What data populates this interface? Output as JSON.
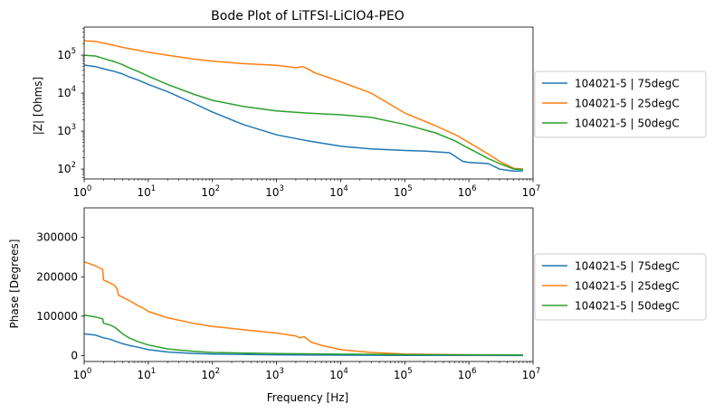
{
  "chart_data": [
    {
      "type": "line",
      "title": "Bode Plot of LiTFSI-LiClO4-PEO",
      "xlabel": "",
      "ylabel": "|Z| [Ohms]",
      "xscale": "log",
      "yscale": "log",
      "xlim": [
        1,
        10000000
      ],
      "ylim": [
        55,
        550000
      ],
      "xticks": [
        {
          "value": 1,
          "base": "10",
          "exp": "0"
        },
        {
          "value": 10,
          "base": "10",
          "exp": "1"
        },
        {
          "value": 100,
          "base": "10",
          "exp": "2"
        },
        {
          "value": 1000,
          "base": "10",
          "exp": "3"
        },
        {
          "value": 10000,
          "base": "10",
          "exp": "4"
        },
        {
          "value": 100000,
          "base": "10",
          "exp": "5"
        },
        {
          "value": 1000000,
          "base": "10",
          "exp": "6"
        },
        {
          "value": 10000000,
          "base": "10",
          "exp": "7"
        }
      ],
      "yticks": [
        {
          "value": 100,
          "base": "10",
          "exp": "2"
        },
        {
          "value": 1000,
          "base": "10",
          "exp": "3"
        },
        {
          "value": 10000,
          "base": "10",
          "exp": "4"
        },
        {
          "value": 100000,
          "base": "10",
          "exp": "5"
        }
      ],
      "legend_position": "right, outside",
      "series": [
        {
          "name": "104021-5 | 75degC",
          "color": "#1f77b4",
          "x": [
            1,
            1.5,
            2,
            3,
            4,
            5,
            7,
            10,
            20,
            50,
            100,
            300,
            1000,
            3000,
            10000,
            30000,
            100000,
            200000,
            500000,
            800000,
            1000000,
            2000000,
            3000000,
            5000000,
            7000000
          ],
          "y": [
            55000,
            50000,
            44000,
            37000,
            32000,
            27000,
            22000,
            17000,
            11000,
            5500,
            3200,
            1500,
            800,
            560,
            400,
            340,
            310,
            300,
            270,
            160,
            150,
            140,
            100,
            88,
            90
          ]
        },
        {
          "name": "104021-5 | 25degC",
          "color": "#ff7f0e",
          "x": [
            1,
            1.5,
            2,
            3,
            4,
            5,
            7,
            10,
            20,
            50,
            100,
            300,
            1000,
            2000,
            2500,
            3000,
            4000,
            5000,
            10000,
            30000,
            50000,
            100000,
            300000,
            700000,
            1000000,
            2000000,
            3000000,
            5000000,
            7000000
          ],
          "y": [
            240000,
            230000,
            210000,
            180000,
            160000,
            150000,
            135000,
            120000,
            100000,
            80000,
            70000,
            60000,
            54000,
            47000,
            50000,
            45000,
            34000,
            30000,
            20000,
            10000,
            6000,
            3000,
            1400,
            720,
            500,
            250,
            160,
            105,
            100
          ]
        },
        {
          "name": "104021-5 | 50degC",
          "color": "#2ca02c",
          "x": [
            1,
            1.5,
            2,
            3,
            4,
            5,
            7,
            10,
            20,
            50,
            100,
            300,
            1000,
            3000,
            10000,
            30000,
            100000,
            300000,
            600000,
            1000000,
            2000000,
            3000000,
            5000000,
            7000000
          ],
          "y": [
            100000,
            95000,
            82000,
            67000,
            56000,
            47000,
            37000,
            28000,
            17000,
            9500,
            6500,
            4500,
            3400,
            3000,
            2700,
            2300,
            1500,
            900,
            560,
            350,
            190,
            140,
            100,
            98
          ]
        }
      ]
    },
    {
      "type": "line",
      "title": "",
      "xlabel": "Frequency [Hz]",
      "ylabel": "Phase [Degrees]",
      "xscale": "log",
      "yscale": "linear",
      "xlim": [
        1,
        10000000
      ],
      "ylim": [
        -15000,
        375000
      ],
      "xticks": [
        {
          "value": 1,
          "base": "10",
          "exp": "0"
        },
        {
          "value": 10,
          "base": "10",
          "exp": "1"
        },
        {
          "value": 100,
          "base": "10",
          "exp": "2"
        },
        {
          "value": 1000,
          "base": "10",
          "exp": "3"
        },
        {
          "value": 10000,
          "base": "10",
          "exp": "4"
        },
        {
          "value": 100000,
          "base": "10",
          "exp": "5"
        },
        {
          "value": 1000000,
          "base": "10",
          "exp": "6"
        },
        {
          "value": 10000000,
          "base": "10",
          "exp": "7"
        }
      ],
      "yticks": [
        {
          "value": 0,
          "label": "0"
        },
        {
          "value": 100000,
          "label": "100000"
        },
        {
          "value": 200000,
          "label": "200000"
        },
        {
          "value": 300000,
          "label": "300000"
        }
      ],
      "legend_position": "right, outside",
      "series": [
        {
          "name": "104021-5 | 75degC",
          "color": "#1f77b4",
          "x": [
            1,
            1.5,
            2,
            2.5,
            3,
            4,
            5,
            7,
            10,
            20,
            50,
            100,
            1000,
            10000,
            100000,
            1000000,
            7000000
          ],
          "y": [
            55000,
            52000,
            45000,
            42000,
            37000,
            30000,
            26000,
            21000,
            15000,
            9000,
            5500,
            4000,
            2000,
            1000,
            500,
            300,
            200
          ]
        },
        {
          "name": "104021-5 | 25degC",
          "color": "#ff7f0e",
          "x": [
            1,
            1.5,
            1.95,
            2,
            2.5,
            3,
            3.3,
            3.4,
            4,
            5,
            6,
            7,
            8,
            10,
            20,
            50,
            100,
            300,
            1000,
            2000,
            2300,
            2700,
            3000,
            3500,
            5000,
            10000,
            30000,
            100000,
            1000000,
            7000000
          ],
          "y": [
            238000,
            228000,
            218000,
            192000,
            185000,
            178000,
            168000,
            154000,
            148000,
            140000,
            133000,
            126000,
            122000,
            112000,
            96000,
            82000,
            74000,
            66000,
            57000,
            50000,
            45000,
            48000,
            42000,
            34000,
            26000,
            15000,
            8000,
            4000,
            2000,
            1500
          ]
        },
        {
          "name": "104021-5 | 50degC",
          "color": "#2ca02c",
          "x": [
            1,
            1.5,
            1.95,
            2,
            2.5,
            3,
            4,
            5,
            7,
            10,
            20,
            50,
            100,
            1000,
            10000,
            100000,
            1000000,
            7000000
          ],
          "y": [
            103000,
            98000,
            93000,
            82000,
            78000,
            72000,
            55000,
            45000,
            35000,
            27000,
            17000,
            11000,
            8000,
            5000,
            3500,
            2500,
            2000,
            1800
          ]
        }
      ]
    }
  ]
}
